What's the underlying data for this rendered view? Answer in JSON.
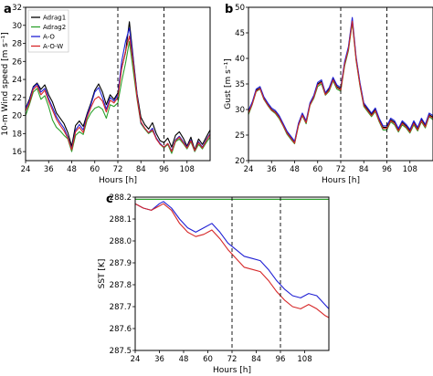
{
  "chart_data": [
    {
      "type": "line",
      "panel_label": "a",
      "ylabel": "10-m Wind speed [m s⁻¹]",
      "xlabel": "Hours [h]",
      "xlim": [
        24,
        120
      ],
      "ylim": [
        15,
        32
      ],
      "xticks": [
        24,
        36,
        48,
        60,
        72,
        84,
        96,
        108
      ],
      "yticks": [
        16,
        18,
        20,
        22,
        24,
        26,
        28,
        30,
        32
      ],
      "vlines": [
        72,
        96
      ],
      "legend": "top-left",
      "colors": {
        "Adrag1": "#000000",
        "Adrag2": "#2ca02c",
        "A-O": "#1f1fd4",
        "A-O-W": "#d62728"
      },
      "series": [
        {
          "name": "Adrag1",
          "x": [
            24,
            26,
            28,
            30,
            32,
            34,
            36,
            38,
            40,
            42,
            44,
            46,
            48,
            50,
            52,
            54,
            56,
            58,
            60,
            62,
            64,
            66,
            68,
            70,
            72,
            74,
            76,
            78,
            80,
            82,
            84,
            86,
            88,
            90,
            92,
            94,
            96,
            98,
            100,
            102,
            104,
            106,
            108,
            110,
            112,
            114,
            116,
            118,
            120
          ],
          "values": [
            20.8,
            21.8,
            23.2,
            23.6,
            22.9,
            23.4,
            22.3,
            21.5,
            20.3,
            19.7,
            19.1,
            18.1,
            16.6,
            18.9,
            19.4,
            18.8,
            20.2,
            21.4,
            22.8,
            23.5,
            22.6,
            21.2,
            22.3,
            21.8,
            22.5,
            25.3,
            27.0,
            30.4,
            26.4,
            22.4,
            19.8,
            19.0,
            18.5,
            19.2,
            18.0,
            17.2,
            17.0,
            17.5,
            16.5,
            17.8,
            18.2,
            17.5,
            16.6,
            17.6,
            16.2,
            17.4,
            16.8,
            17.6,
            18.4
          ]
        },
        {
          "name": "Adrag2",
          "x": [
            24,
            26,
            28,
            30,
            32,
            34,
            36,
            38,
            40,
            42,
            44,
            46,
            48,
            50,
            52,
            54,
            56,
            58,
            60,
            62,
            64,
            66,
            68,
            70,
            72,
            74,
            76,
            78,
            80,
            82,
            84,
            86,
            88,
            90,
            92,
            94,
            96,
            98,
            100,
            102,
            104,
            106,
            108,
            110,
            112,
            114,
            116,
            118,
            120
          ],
          "values": [
            20.0,
            21.2,
            22.6,
            23.0,
            21.8,
            22.2,
            21.0,
            19.5,
            18.7,
            18.3,
            17.8,
            17.4,
            16.0,
            17.8,
            18.2,
            17.9,
            19.5,
            20.3,
            20.8,
            21.0,
            20.7,
            19.7,
            21.2,
            21.0,
            21.4,
            23.8,
            25.8,
            28.2,
            25.0,
            21.8,
            19.1,
            18.5,
            18.0,
            18.3,
            17.5,
            16.8,
            16.4,
            16.8,
            15.8,
            17.1,
            17.4,
            16.9,
            16.3,
            17.1,
            16.0,
            16.8,
            16.3,
            17.0,
            17.6
          ]
        },
        {
          "name": "A-O",
          "x": [
            24,
            26,
            28,
            30,
            32,
            34,
            36,
            38,
            40,
            42,
            44,
            46,
            48,
            50,
            52,
            54,
            56,
            58,
            60,
            62,
            64,
            66,
            68,
            70,
            72,
            74,
            76,
            78,
            80,
            82,
            84,
            86,
            88,
            90,
            92,
            94,
            96,
            98,
            100,
            102,
            104,
            106,
            108,
            110,
            112,
            114,
            116,
            118,
            120
          ],
          "values": [
            20.8,
            21.6,
            23.1,
            23.5,
            22.6,
            23.0,
            21.9,
            20.9,
            19.9,
            19.2,
            18.6,
            17.6,
            16.3,
            18.4,
            19.0,
            18.4,
            20.0,
            21.2,
            22.6,
            23.1,
            22.0,
            20.7,
            22.0,
            21.6,
            22.3,
            26.0,
            28.2,
            29.7,
            26.2,
            22.2,
            19.2,
            18.6,
            18.1,
            18.6,
            17.5,
            16.9,
            16.5,
            16.9,
            16.1,
            17.3,
            17.7,
            17.1,
            16.5,
            17.3,
            16.1,
            17.1,
            16.5,
            17.3,
            18.0
          ]
        },
        {
          "name": "A-O-W",
          "x": [
            24,
            26,
            28,
            30,
            32,
            34,
            36,
            38,
            40,
            42,
            44,
            46,
            48,
            50,
            52,
            54,
            56,
            58,
            60,
            62,
            64,
            66,
            68,
            70,
            72,
            74,
            76,
            78,
            80,
            82,
            84,
            86,
            88,
            90,
            92,
            94,
            96,
            98,
            100,
            102,
            104,
            106,
            108,
            110,
            112,
            114,
            116,
            118,
            120
          ],
          "values": [
            20.5,
            21.4,
            22.9,
            23.3,
            22.3,
            22.8,
            21.6,
            20.6,
            19.6,
            18.9,
            18.3,
            17.5,
            16.2,
            18.2,
            18.7,
            18.1,
            19.8,
            20.9,
            21.8,
            22.1,
            21.6,
            20.4,
            21.7,
            21.4,
            22.0,
            25.2,
            27.1,
            28.8,
            25.8,
            22.0,
            19.3,
            18.6,
            18.1,
            18.4,
            17.4,
            16.8,
            16.5,
            16.9,
            16.0,
            17.2,
            17.6,
            17.0,
            16.4,
            17.2,
            16.1,
            17.0,
            16.4,
            17.2,
            17.9
          ]
        }
      ]
    },
    {
      "type": "line",
      "panel_label": "b",
      "ylabel": "Gust [m s⁻¹]",
      "xlabel": "Hours [h]",
      "xlim": [
        24,
        120
      ],
      "ylim": [
        20,
        50
      ],
      "xticks": [
        24,
        36,
        48,
        60,
        72,
        84,
        96,
        108
      ],
      "yticks": [
        20,
        25,
        30,
        35,
        40,
        45,
        50
      ],
      "vlines": [
        72,
        96
      ],
      "colors": {
        "Adrag1": "#000000",
        "Adrag2": "#2ca02c",
        "A-O": "#1f1fd4",
        "A-O-W": "#d62728"
      },
      "series": [
        {
          "name": "Adrag1",
          "x": [
            24,
            26,
            28,
            30,
            32,
            34,
            36,
            38,
            40,
            42,
            44,
            46,
            48,
            50,
            52,
            54,
            56,
            58,
            60,
            62,
            64,
            66,
            68,
            70,
            72,
            74,
            76,
            78,
            80,
            82,
            84,
            86,
            88,
            90,
            92,
            94,
            96,
            98,
            100,
            102,
            104,
            106,
            108,
            110,
            112,
            114,
            116,
            118,
            120
          ],
          "values": [
            29.5,
            31.2,
            33.8,
            34.2,
            32.2,
            31.0,
            30.0,
            29.5,
            28.5,
            27.0,
            25.5,
            24.5,
            23.5,
            27.0,
            29.0,
            27.5,
            31.0,
            32.5,
            35.0,
            35.5,
            33.0,
            34.0,
            36.0,
            34.5,
            34.0,
            39.0,
            42.0,
            47.5,
            40.0,
            35.0,
            31.0,
            30.0,
            29.0,
            30.0,
            28.0,
            26.5,
            26.5,
            28.0,
            27.5,
            26.0,
            27.5,
            26.8,
            25.8,
            27.5,
            26.2,
            28.0,
            26.8,
            29.0,
            28.5
          ]
        },
        {
          "name": "Adrag2",
          "x": [
            24,
            26,
            28,
            30,
            32,
            34,
            36,
            38,
            40,
            42,
            44,
            46,
            48,
            50,
            52,
            54,
            56,
            58,
            60,
            62,
            64,
            66,
            68,
            70,
            72,
            74,
            76,
            78,
            80,
            82,
            84,
            86,
            88,
            90,
            92,
            94,
            96,
            98,
            100,
            102,
            104,
            106,
            108,
            110,
            112,
            114,
            116,
            118,
            120
          ],
          "values": [
            29.0,
            31.0,
            33.5,
            34.0,
            32.0,
            30.8,
            29.8,
            29.2,
            28.2,
            26.8,
            25.2,
            24.2,
            23.3,
            26.8,
            28.8,
            27.2,
            30.8,
            32.2,
            34.5,
            35.0,
            32.8,
            33.6,
            35.6,
            34.0,
            33.6,
            38.5,
            41.5,
            47.0,
            39.6,
            34.6,
            30.6,
            29.6,
            28.6,
            29.6,
            27.6,
            26.0,
            26.0,
            27.6,
            27.0,
            25.6,
            27.0,
            26.4,
            25.4,
            27.0,
            25.8,
            27.6,
            26.4,
            28.6,
            28.0
          ]
        },
        {
          "name": "A-O",
          "x": [
            24,
            26,
            28,
            30,
            32,
            34,
            36,
            38,
            40,
            42,
            44,
            46,
            48,
            50,
            52,
            54,
            56,
            58,
            60,
            62,
            64,
            66,
            68,
            70,
            72,
            74,
            76,
            78,
            80,
            82,
            84,
            86,
            88,
            90,
            92,
            94,
            96,
            98,
            100,
            102,
            104,
            106,
            108,
            110,
            112,
            114,
            116,
            118,
            120
          ],
          "values": [
            29.8,
            31.5,
            34.0,
            34.5,
            32.5,
            31.3,
            30.3,
            29.8,
            28.8,
            27.3,
            25.8,
            24.8,
            23.8,
            27.3,
            29.3,
            27.8,
            31.3,
            32.8,
            35.3,
            35.8,
            33.3,
            34.3,
            36.3,
            34.8,
            34.3,
            39.3,
            42.3,
            48.0,
            40.3,
            35.3,
            31.3,
            30.3,
            29.3,
            30.3,
            28.3,
            26.8,
            26.8,
            28.3,
            27.8,
            26.3,
            27.8,
            27.1,
            26.1,
            27.8,
            26.5,
            28.3,
            27.1,
            29.3,
            28.8
          ]
        },
        {
          "name": "A-O-W",
          "x": [
            24,
            26,
            28,
            30,
            32,
            34,
            36,
            38,
            40,
            42,
            44,
            46,
            48,
            50,
            52,
            54,
            56,
            58,
            60,
            62,
            64,
            66,
            68,
            70,
            72,
            74,
            76,
            78,
            80,
            82,
            84,
            86,
            88,
            90,
            92,
            94,
            96,
            98,
            100,
            102,
            104,
            106,
            108,
            110,
            112,
            114,
            116,
            118,
            120
          ],
          "values": [
            29.3,
            31.1,
            33.6,
            34.1,
            32.1,
            30.9,
            29.9,
            29.4,
            28.4,
            26.9,
            25.4,
            24.4,
            23.4,
            26.9,
            28.9,
            27.4,
            30.9,
            32.4,
            34.8,
            35.3,
            32.9,
            33.8,
            35.8,
            34.3,
            33.8,
            38.8,
            41.8,
            47.3,
            39.8,
            34.8,
            30.8,
            29.8,
            28.8,
            29.8,
            27.8,
            26.3,
            26.3,
            27.8,
            27.3,
            25.8,
            27.3,
            26.6,
            25.6,
            27.3,
            26.0,
            27.8,
            26.6,
            28.8,
            28.3
          ]
        }
      ]
    },
    {
      "type": "line",
      "panel_label": "c",
      "ylabel": "SST [K]",
      "xlabel": "Hours [h]",
      "xlim": [
        24,
        120
      ],
      "ylim": [
        287.5,
        288.2
      ],
      "xticks": [
        24,
        36,
        48,
        60,
        72,
        84,
        96,
        108
      ],
      "yticks": [
        287.5,
        287.6,
        287.7,
        287.8,
        287.9,
        288.0,
        288.1,
        288.2
      ],
      "vlines": [
        72,
        96
      ],
      "colors": {
        "Adrag1": "#000000",
        "Adrag2": "#2ca02c",
        "A-O": "#1f1fd4",
        "A-O-W": "#d62728"
      },
      "series": [
        {
          "name": "Adrag1",
          "x": [
            24,
            120
          ],
          "values": [
            288.19,
            288.19
          ]
        },
        {
          "name": "Adrag2",
          "x": [
            24,
            120
          ],
          "values": [
            288.19,
            288.19
          ]
        },
        {
          "name": "A-O",
          "x": [
            24,
            28,
            32,
            36,
            38,
            42,
            46,
            50,
            54,
            58,
            62,
            66,
            70,
            74,
            78,
            82,
            86,
            90,
            94,
            98,
            102,
            106,
            110,
            114,
            118,
            120
          ],
          "values": [
            288.17,
            288.15,
            288.14,
            288.17,
            288.18,
            288.15,
            288.1,
            288.06,
            288.04,
            288.06,
            288.08,
            288.04,
            287.99,
            287.96,
            287.93,
            287.92,
            287.91,
            287.87,
            287.82,
            287.78,
            287.75,
            287.74,
            287.76,
            287.75,
            287.71,
            287.69
          ]
        },
        {
          "name": "A-O-W",
          "x": [
            24,
            28,
            32,
            36,
            38,
            42,
            46,
            50,
            54,
            58,
            62,
            66,
            70,
            74,
            78,
            82,
            86,
            90,
            94,
            98,
            102,
            106,
            110,
            114,
            118,
            120
          ],
          "values": [
            288.17,
            288.15,
            288.14,
            288.16,
            288.17,
            288.14,
            288.08,
            288.04,
            288.02,
            288.03,
            288.05,
            288.01,
            287.96,
            287.92,
            287.88,
            287.87,
            287.86,
            287.82,
            287.77,
            287.73,
            287.7,
            287.69,
            287.71,
            287.69,
            287.66,
            287.65
          ]
        }
      ]
    }
  ]
}
